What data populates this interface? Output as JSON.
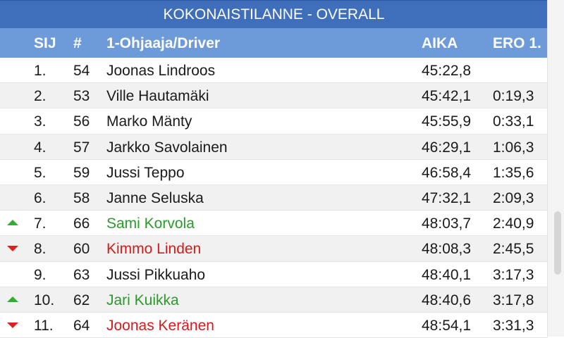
{
  "title": "KOKONAISTILANNE - OVERALL",
  "columns": {
    "pos": "SIJ",
    "num": "#",
    "driver": "1-Ohjaaja/Driver",
    "time": "AIKA",
    "gap": "ERO 1."
  },
  "rows": [
    {
      "pos": "1.",
      "num": "54",
      "driver": "Joonas Lindroos",
      "time": "45:22,8",
      "gap": "",
      "trend": ""
    },
    {
      "pos": "2.",
      "num": "53",
      "driver": "Ville Hautamäki",
      "time": "45:42,1",
      "gap": "0:19,3",
      "trend": ""
    },
    {
      "pos": "3.",
      "num": "56",
      "driver": "Marko Mänty",
      "time": "45:55,9",
      "gap": "0:33,1",
      "trend": ""
    },
    {
      "pos": "4.",
      "num": "57",
      "driver": "Jarkko Savolainen",
      "time": "46:29,1",
      "gap": "1:06,3",
      "trend": ""
    },
    {
      "pos": "5.",
      "num": "59",
      "driver": "Jussi Teppo",
      "time": "46:58,4",
      "gap": "1:35,6",
      "trend": ""
    },
    {
      "pos": "6.",
      "num": "58",
      "driver": "Janne Seluska",
      "time": "47:32,1",
      "gap": "2:09,3",
      "trend": ""
    },
    {
      "pos": "7.",
      "num": "66",
      "driver": "Sami Korvola",
      "time": "48:03,7",
      "gap": "2:40,9",
      "trend": "up"
    },
    {
      "pos": "8.",
      "num": "60",
      "driver": "Kimmo Linden",
      "time": "48:08,3",
      "gap": "2:45,5",
      "trend": "down"
    },
    {
      "pos": "9.",
      "num": "63",
      "driver": "Jussi Pikkuaho",
      "time": "48:40,1",
      "gap": "3:17,3",
      "trend": ""
    },
    {
      "pos": "10.",
      "num": "62",
      "driver": "Jari Kuikka",
      "time": "48:40,6",
      "gap": "3:17,8",
      "trend": "up"
    },
    {
      "pos": "11.",
      "num": "64",
      "driver": "Joonas Keränen",
      "time": "48:54,1",
      "gap": "3:31,3",
      "trend": "down"
    }
  ],
  "colors": {
    "title_bg": "#3f6fbb",
    "header_bg": "#6d9ad8",
    "up": "#2a9a2a",
    "down": "#d61b1b"
  }
}
